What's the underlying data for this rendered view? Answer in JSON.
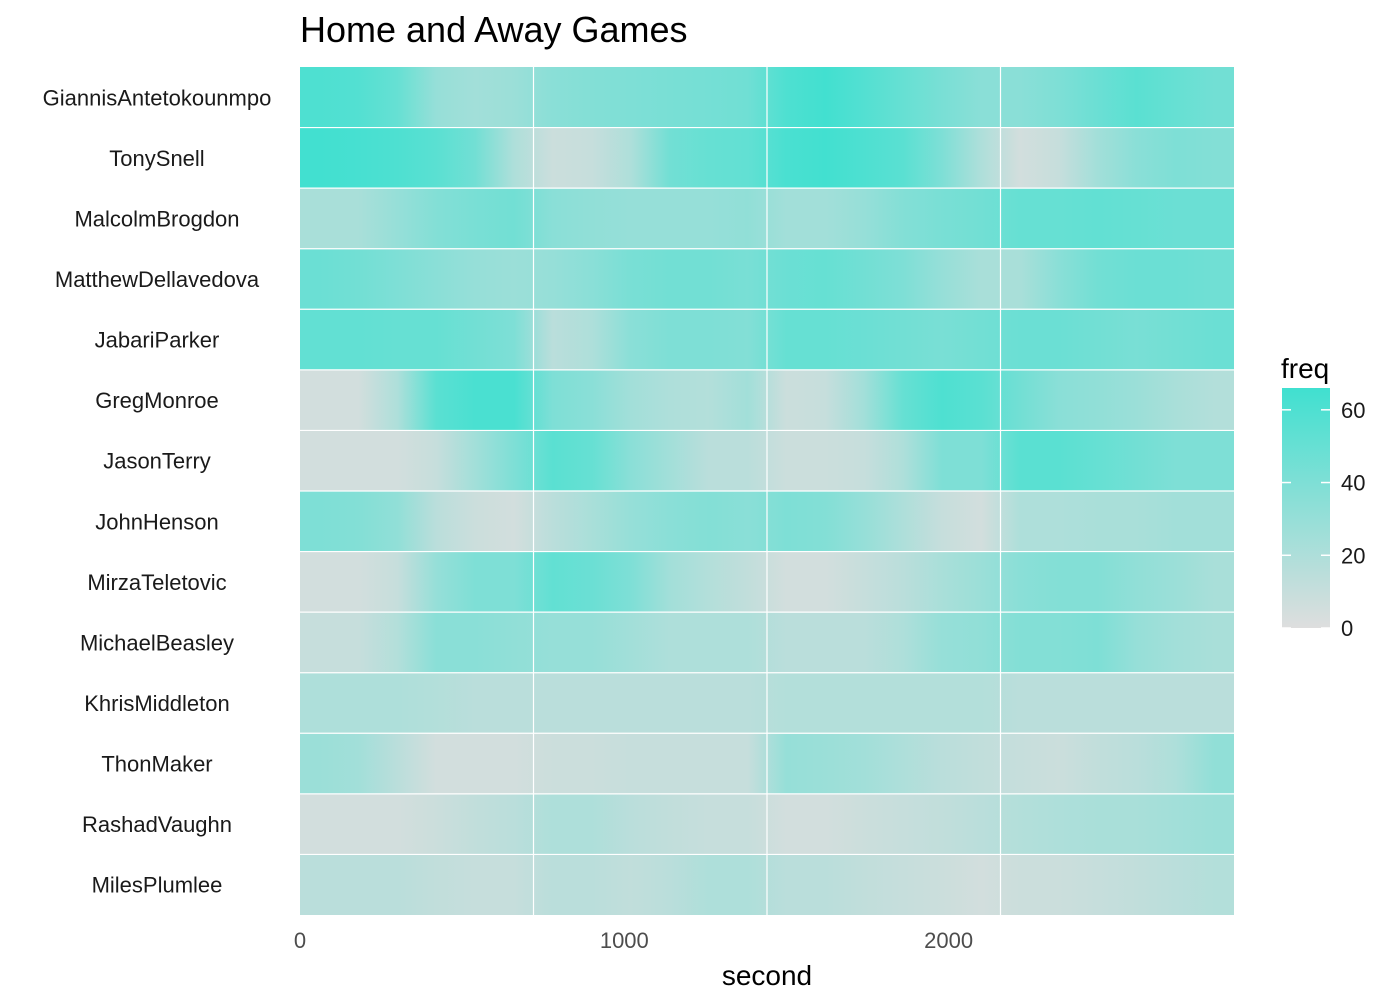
{
  "chart_data": {
    "type": "heatmap",
    "title": "Home and Away Games",
    "xlabel": "second",
    "ylabel": "",
    "xlim": [
      0,
      2880
    ],
    "x_ticks": [
      0,
      1000,
      2000
    ],
    "x_tick_labels": [
      "0",
      "1000",
      "2000"
    ],
    "x_gridlines": [
      720,
      1440,
      2160
    ],
    "grid": true,
    "legend": {
      "title": "freq",
      "placement": "right",
      "range": [
        0,
        66
      ],
      "ticks": [
        0,
        20,
        40,
        60
      ],
      "tick_labels": [
        "0",
        "20",
        "40",
        "60"
      ],
      "color_low": "#dedede",
      "color_high": "#40e0d0"
    },
    "x": [
      0,
      120,
      240,
      360,
      480,
      600,
      720,
      840,
      960,
      1080,
      1200,
      1320,
      1440,
      1560,
      1680,
      1800,
      1920,
      2040,
      2160,
      2280,
      2400,
      2520,
      2640,
      2760
    ],
    "rows": [
      {
        "name": "GiannisAntetokounmpo",
        "values": [
          60,
          58,
          50,
          30,
          25,
          28,
          35,
          38,
          40,
          42,
          44,
          46,
          60,
          65,
          58,
          50,
          42,
          35,
          35,
          40,
          48,
          55,
          50,
          45
        ]
      },
      {
        "name": "TonySnell",
        "values": [
          65,
          63,
          60,
          55,
          45,
          20,
          8,
          10,
          20,
          45,
          50,
          52,
          62,
          65,
          60,
          55,
          40,
          20,
          5,
          10,
          25,
          35,
          40,
          38
        ]
      },
      {
        "name": "MalcolmBrogdon",
        "values": [
          22,
          22,
          30,
          38,
          42,
          45,
          35,
          32,
          30,
          30,
          30,
          32,
          25,
          25,
          30,
          38,
          42,
          45,
          50,
          50,
          52,
          50,
          48,
          48
        ]
      },
      {
        "name": "MatthewDellavedova",
        "values": [
          48,
          45,
          40,
          35,
          30,
          28,
          30,
          35,
          42,
          45,
          45,
          42,
          48,
          50,
          45,
          40,
          30,
          22,
          22,
          35,
          45,
          48,
          48,
          46
        ]
      },
      {
        "name": "JabariParker",
        "values": [
          52,
          52,
          50,
          50,
          45,
          40,
          15,
          20,
          35,
          40,
          40,
          38,
          50,
          50,
          48,
          45,
          42,
          45,
          48,
          48,
          45,
          42,
          45,
          48
        ]
      },
      {
        "name": "GregMonroe",
        "values": [
          5,
          5,
          20,
          55,
          62,
          62,
          40,
          35,
          25,
          20,
          18,
          25,
          8,
          10,
          25,
          50,
          60,
          55,
          45,
          35,
          32,
          28,
          22,
          18
        ]
      },
      {
        "name": "JasonTerry",
        "values": [
          5,
          5,
          5,
          10,
          25,
          40,
          55,
          50,
          35,
          25,
          15,
          15,
          8,
          8,
          10,
          20,
          40,
          40,
          55,
          55,
          50,
          45,
          40,
          40
        ]
      },
      {
        "name": "JohnHenson",
        "values": [
          40,
          38,
          32,
          15,
          8,
          5,
          15,
          22,
          30,
          35,
          38,
          35,
          40,
          38,
          30,
          20,
          10,
          5,
          20,
          20,
          22,
          22,
          25,
          25
        ]
      },
      {
        "name": "MirzaTeletovic",
        "values": [
          5,
          5,
          10,
          30,
          40,
          40,
          52,
          48,
          40,
          25,
          18,
          12,
          5,
          5,
          10,
          15,
          22,
          28,
          35,
          38,
          38,
          32,
          28,
          22
        ]
      },
      {
        "name": "MichaelBeasley",
        "values": [
          10,
          10,
          18,
          35,
          35,
          32,
          30,
          30,
          25,
          20,
          20,
          20,
          15,
          15,
          15,
          20,
          30,
          32,
          38,
          38,
          40,
          30,
          25,
          22
        ]
      },
      {
        "name": "KhrisMiddleton",
        "values": [
          20,
          20,
          20,
          18,
          15,
          15,
          15,
          15,
          15,
          15,
          15,
          15,
          18,
          18,
          18,
          18,
          18,
          18,
          15,
          15,
          15,
          15,
          15,
          15
        ]
      },
      {
        "name": "ThonMaker",
        "values": [
          28,
          25,
          15,
          5,
          5,
          5,
          8,
          8,
          10,
          10,
          10,
          10,
          30,
          28,
          25,
          20,
          15,
          12,
          10,
          8,
          12,
          15,
          20,
          32
        ]
      },
      {
        "name": "RashadVaughn",
        "values": [
          5,
          5,
          5,
          8,
          12,
          15,
          20,
          20,
          15,
          12,
          10,
          10,
          5,
          5,
          8,
          10,
          12,
          15,
          18,
          20,
          22,
          22,
          25,
          28
        ]
      },
      {
        "name": "MilesPlumlee",
        "values": [
          15,
          15,
          15,
          12,
          10,
          10,
          15,
          15,
          12,
          15,
          20,
          20,
          15,
          15,
          12,
          10,
          8,
          5,
          8,
          8,
          10,
          12,
          15,
          18
        ]
      }
    ]
  }
}
